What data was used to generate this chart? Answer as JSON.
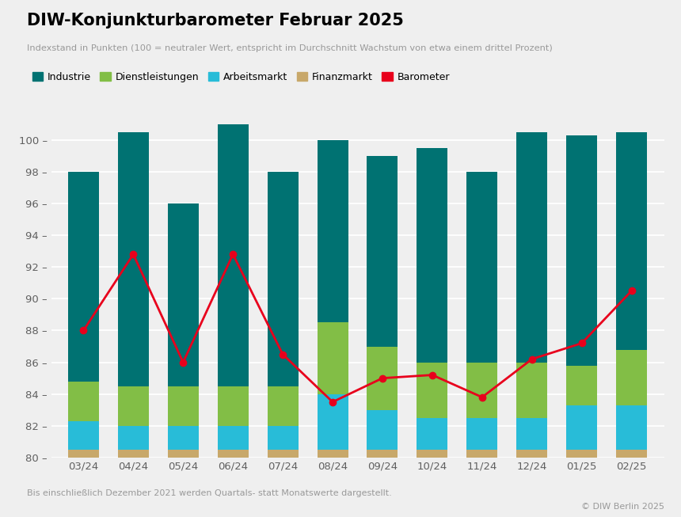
{
  "title": "DIW-Konjunkturbarometer Februar 2025",
  "subtitle": "Indexstand in Punkten (100 = neutraler Wert, entspricht im Durchschnitt Wachstum von etwa einem drittel Prozent)",
  "footnote": "Bis einschließlich Dezember 2021 werden Quartals- statt Monatswerte dargestellt.",
  "copyright": "© DIW Berlin 2025",
  "categories": [
    "03/24",
    "04/24",
    "05/24",
    "06/24",
    "07/24",
    "08/24",
    "09/24",
    "10/24",
    "11/24",
    "12/24",
    "01/25",
    "02/25"
  ],
  "colors": {
    "Industrie": "#007272",
    "Dienstleistungen": "#82be46",
    "Arbeitsmarkt": "#28bcd8",
    "Finanzmarkt": "#c8a86a",
    "Barometer": "#e8001c"
  },
  "legend_labels": [
    "Industrie",
    "Dienstleistungen",
    "Arbeitsmarkt",
    "Finanzmarkt",
    "Barometer"
  ],
  "bar_data": {
    "Finanzmarkt": [
      0.5,
      0.5,
      0.5,
      0.5,
      0.5,
      0.5,
      0.5,
      0.5,
      0.5,
      0.5,
      0.5,
      0.5
    ],
    "Arbeitsmarkt": [
      1.8,
      1.5,
      1.5,
      1.5,
      1.5,
      3.5,
      2.5,
      2.0,
      2.0,
      2.0,
      2.8,
      2.8
    ],
    "Dienstleistungen": [
      2.5,
      2.5,
      2.5,
      2.5,
      2.5,
      4.5,
      4.0,
      3.5,
      3.5,
      3.5,
      2.5,
      3.5
    ],
    "Industrie": [
      13.2,
      16.0,
      11.5,
      16.5,
      13.5,
      11.5,
      12.0,
      13.5,
      12.0,
      14.5,
      14.5,
      13.7
    ]
  },
  "bar_base": 80,
  "barometer_line": [
    88.0,
    92.8,
    86.0,
    92.8,
    86.5,
    83.5,
    85.0,
    85.2,
    83.8,
    86.2,
    87.2,
    90.5
  ],
  "ylim": [
    80,
    101
  ],
  "yticks": [
    80,
    82,
    84,
    86,
    88,
    90,
    92,
    94,
    96,
    98,
    100
  ],
  "background_color": "#efefef",
  "bar_width": 0.62
}
